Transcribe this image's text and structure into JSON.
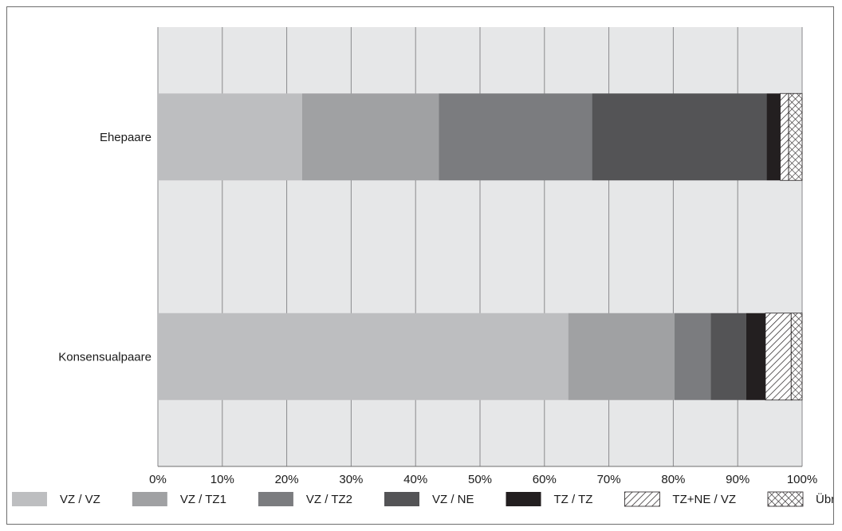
{
  "chart_data": {
    "type": "bar",
    "orientation": "horizontal",
    "stacked": "percent",
    "categories": [
      "Ehepaare",
      "Konsensualpaare"
    ],
    "series": [
      {
        "name": "VZ / VZ",
        "values": [
          22.4,
          63.7
        ],
        "color": "#bdbec0"
      },
      {
        "name": "VZ / TZ1",
        "values": [
          21.2,
          16.5
        ],
        "color": "#a0a1a3"
      },
      {
        "name": "VZ / TZ2",
        "values": [
          23.8,
          5.6
        ],
        "color": "#7b7c7f"
      },
      {
        "name": "VZ / NE",
        "values": [
          27.1,
          5.5
        ],
        "color": "#545456"
      },
      {
        "name": "TZ / TZ",
        "values": [
          2.1,
          3.0
        ],
        "color": "#231f20"
      },
      {
        "name": "TZ+NE / VZ",
        "values": [
          1.3,
          4.0
        ],
        "color": "#ffffff",
        "pattern": "hatch"
      },
      {
        "name": "Übrige",
        "values": [
          2.1,
          1.7
        ],
        "color": "#ffffff",
        "pattern": "crosshatch"
      }
    ],
    "xticks": [
      "0%",
      "10%",
      "20%",
      "30%",
      "40%",
      "50%",
      "60%",
      "70%",
      "80%",
      "90%",
      "100%"
    ],
    "xlim": [
      0,
      100
    ],
    "grid": true,
    "legend": "bottom",
    "plot_background": "#e6e7e8"
  }
}
